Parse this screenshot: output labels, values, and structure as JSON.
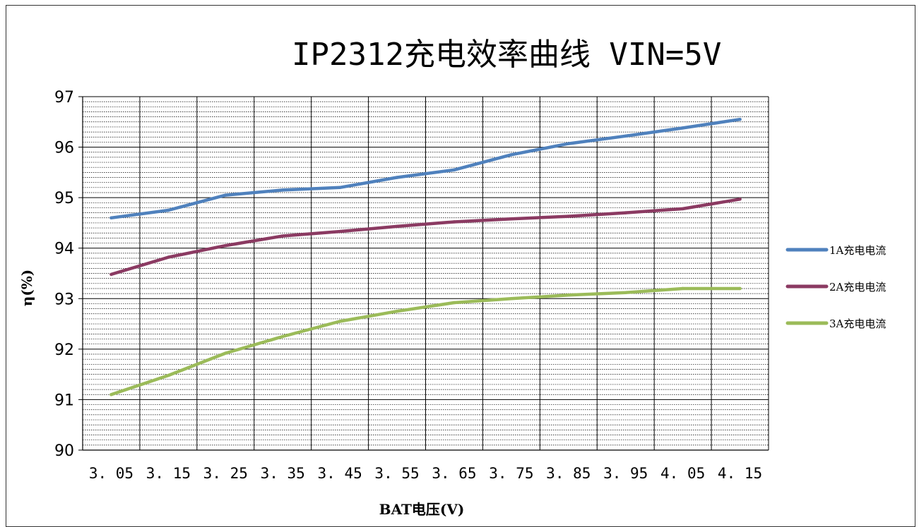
{
  "chart_data": {
    "type": "line",
    "title": "IP2312充电效率曲线   VIN=5V",
    "xlabel": "BAT电压(V)",
    "ylabel": "η(%)",
    "categories": [
      "3.05",
      "3.15",
      "3.25",
      "3.35",
      "3.45",
      "3.55",
      "3.65",
      "3.75",
      "3.85",
      "3.95",
      "4.05",
      "4.15"
    ],
    "tick_labels_display": [
      "3. 05",
      "3. 15",
      "3. 25",
      "3. 35",
      "3. 45",
      "3. 55",
      "3. 65",
      "3. 75",
      "3. 85",
      "3. 95",
      "4. 05",
      "4. 15"
    ],
    "y_ticks": [
      "90",
      "91",
      "92",
      "93",
      "94",
      "95",
      "96",
      "97"
    ],
    "ylim": [
      90,
      97
    ],
    "grid": true,
    "legend_position": "right",
    "series": [
      {
        "name": "1A充电电流",
        "color": "#4f81bd",
        "values": [
          94.6,
          94.75,
          95.05,
          95.15,
          95.2,
          95.4,
          95.55,
          95.85,
          96.07,
          96.22,
          96.38,
          96.55
        ]
      },
      {
        "name": "2A充电电流",
        "color": "#8b3a62",
        "values": [
          93.48,
          93.82,
          94.05,
          94.24,
          94.33,
          94.43,
          94.52,
          94.58,
          94.63,
          94.7,
          94.78,
          94.97
        ]
      },
      {
        "name": "3A充电电流",
        "color": "#9bbb59",
        "values": [
          91.1,
          91.48,
          91.92,
          92.25,
          92.55,
          92.75,
          92.92,
          93.0,
          93.07,
          93.12,
          93.2,
          93.2
        ]
      }
    ]
  }
}
